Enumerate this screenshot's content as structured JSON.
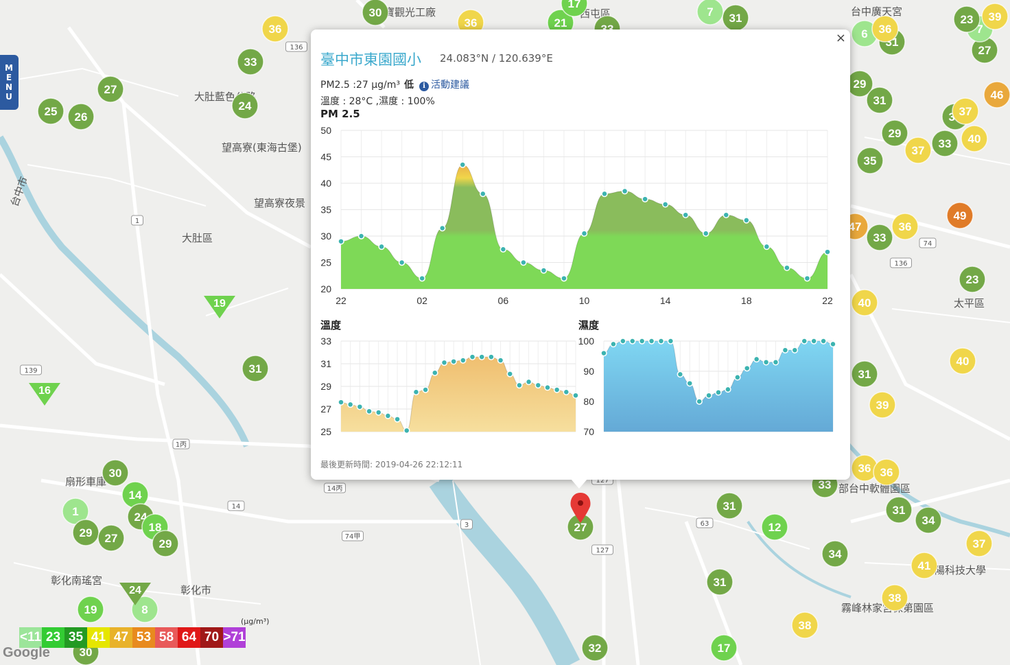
{
  "ui": {
    "menu": "MENU",
    "close": "×",
    "google": "Google"
  },
  "station": {
    "name": "臺中市東園國小",
    "coords": "24.083°N / 120.639°E",
    "pm_text": "PM2.5 :27 μg/m³",
    "level": "低",
    "advice": "活動建議",
    "weather": "溫度 : 28°C ,濕度 : 100%",
    "updated": "最後更新時間: 2019-04-26 22:12:11"
  },
  "chart_data": [
    {
      "type": "area",
      "title": "PM 2.5",
      "xlabels": [
        "22",
        "02",
        "06",
        "10",
        "14",
        "18",
        "22"
      ],
      "ylim": [
        20,
        50
      ],
      "yticks": [
        20,
        25,
        30,
        35,
        40,
        45,
        50
      ],
      "values": [
        29,
        30,
        28,
        25,
        22,
        31.5,
        43.5,
        38,
        27.5,
        25,
        23.5,
        22,
        30.5,
        38,
        38.5,
        37,
        36,
        34,
        30.5,
        34,
        33,
        28,
        24,
        22,
        27
      ],
      "grid": true
    },
    {
      "type": "area",
      "title": "溫度",
      "ylim": [
        25,
        33
      ],
      "yticks": [
        25,
        27,
        29,
        31,
        33
      ],
      "values": [
        27.6,
        27.4,
        27.2,
        26.8,
        26.7,
        26.4,
        26.1,
        25.1,
        28.5,
        28.7,
        30.2,
        31.1,
        31.2,
        31.3,
        31.6,
        31.6,
        31.6,
        31.3,
        30.1,
        29.1,
        29.4,
        29.1,
        28.9,
        28.7,
        28.5,
        28.2
      ],
      "grid": true
    },
    {
      "type": "area",
      "title": "濕度",
      "ylim": [
        70,
        100
      ],
      "yticks": [
        70,
        80,
        90,
        100
      ],
      "values": [
        96,
        99,
        100,
        100,
        100,
        100,
        100,
        100,
        89,
        86,
        80,
        82,
        83,
        84,
        88,
        91,
        94,
        93,
        93,
        97,
        97,
        100,
        100,
        100,
        99
      ],
      "grid": true
    }
  ],
  "map_labels": [
    "大肚區",
    "大肚藍色公路",
    "望高寮(東海古堡)",
    "望高寮夜景",
    "彰化市",
    "扇形車庫",
    "彰化南瑤宮",
    "太平區",
    "部台中軟體園區",
    "陽科技大學",
    "霧峰林家宮保第園區",
    "台中市",
    "寶觀光工廠",
    "西屯區",
    "台中廣天宮"
  ],
  "road_labels": [
    "136",
    "139",
    "127",
    "127",
    "74",
    "63",
    "14",
    "3",
    "1",
    "1丙",
    "14丙",
    "74甲",
    "136"
  ],
  "markers": [
    {
      "v": "30",
      "c": "#73a847"
    },
    {
      "v": "36",
      "c": "#f0d64a"
    },
    {
      "v": "33",
      "c": "#73a847"
    },
    {
      "v": "27",
      "c": "#73a847"
    },
    {
      "v": "25",
      "c": "#73a847"
    },
    {
      "v": "26",
      "c": "#73a847"
    },
    {
      "v": "24",
      "c": "#73a847"
    },
    {
      "v": "31",
      "c": "#73a847"
    },
    {
      "v": "30",
      "c": "#73a847"
    },
    {
      "v": "14",
      "c": "#6fd24e"
    },
    {
      "v": "1",
      "c": "#9ee58e"
    },
    {
      "v": "24",
      "c": "#73a847"
    },
    {
      "v": "18",
      "c": "#6fd24e"
    },
    {
      "v": "29",
      "c": "#73a847"
    },
    {
      "v": "27",
      "c": "#73a847"
    },
    {
      "v": "29",
      "c": "#73a847"
    },
    {
      "v": "19",
      "c": "#6fd24e"
    },
    {
      "v": "8",
      "c": "#9ee58e"
    },
    {
      "v": "30",
      "c": "#73a847"
    },
    {
      "v": "27",
      "c": "#73a847"
    },
    {
      "v": "31",
      "c": "#73a847"
    },
    {
      "v": "12",
      "c": "#6fd24e"
    },
    {
      "v": "31",
      "c": "#73a847"
    },
    {
      "v": "32",
      "c": "#73a847"
    },
    {
      "v": "17",
      "c": "#6fd24e"
    },
    {
      "v": "33",
      "c": "#73a847"
    },
    {
      "v": "31",
      "c": "#73a847"
    },
    {
      "v": "34",
      "c": "#73a847"
    },
    {
      "v": "34",
      "c": "#73a847"
    },
    {
      "v": "41",
      "c": "#f0d64a"
    },
    {
      "v": "37",
      "c": "#f0d64a"
    },
    {
      "v": "38",
      "c": "#f0d64a"
    },
    {
      "v": "38",
      "c": "#f0d64a"
    },
    {
      "v": "36",
      "c": "#f0d64a"
    },
    {
      "v": "36",
      "c": "#f0d64a"
    },
    {
      "v": "31",
      "c": "#73a847"
    },
    {
      "v": "39",
      "c": "#f0d64a"
    },
    {
      "v": "40",
      "c": "#f0d64a"
    },
    {
      "v": "40",
      "c": "#f0d64a"
    },
    {
      "v": "23",
      "c": "#73a847"
    },
    {
      "v": "33",
      "c": "#73a847"
    },
    {
      "v": "36",
      "c": "#f0d64a"
    },
    {
      "v": "47",
      "c": "#e9a83c"
    },
    {
      "v": "49",
      "c": "#e07b28"
    },
    {
      "v": "35",
      "c": "#73a847"
    },
    {
      "v": "37",
      "c": "#f0d64a"
    },
    {
      "v": "33",
      "c": "#73a847"
    },
    {
      "v": "40",
      "c": "#f0d64a"
    },
    {
      "v": "29",
      "c": "#73a847"
    },
    {
      "v": "31",
      "c": "#73a847"
    },
    {
      "v": "35",
      "c": "#73a847"
    },
    {
      "v": "29",
      "c": "#73a847"
    },
    {
      "v": "31",
      "c": "#73a847"
    },
    {
      "v": "27",
      "c": "#73a847"
    },
    {
      "v": "7",
      "c": "#9ee58e"
    },
    {
      "v": "23",
      "c": "#73a847"
    },
    {
      "v": "39",
      "c": "#f0d64a"
    },
    {
      "v": "46",
      "c": "#e9a83c"
    },
    {
      "v": "35",
      "c": "#73a847"
    },
    {
      "v": "37",
      "c": "#f0d64a"
    },
    {
      "v": "6",
      "c": "#9ee58e"
    },
    {
      "v": "31",
      "c": "#73a847"
    },
    {
      "v": "7",
      "c": "#9ee58e"
    },
    {
      "v": "21",
      "c": "#6fd24e"
    },
    {
      "v": "36",
      "c": "#f0d64a"
    },
    {
      "v": "17",
      "c": "#6fd24e"
    },
    {
      "v": "33",
      "c": "#73a847"
    },
    {
      "v": "36",
      "c": "#f0d64a"
    }
  ],
  "triangles": [
    {
      "v": "19",
      "c": "#6fd24e"
    },
    {
      "v": "16",
      "c": "#6fd24e"
    },
    {
      "v": "24",
      "c": "#73a847"
    }
  ],
  "legend": {
    "unit": "(μg/m³)",
    "items": [
      {
        "label": "<11",
        "c": "#9ce59a"
      },
      {
        "label": "23",
        "c": "#33cc33"
      },
      {
        "label": "35",
        "c": "#239a23"
      },
      {
        "label": "41",
        "c": "#e6e600"
      },
      {
        "label": "47",
        "c": "#e8b22a"
      },
      {
        "label": "53",
        "c": "#e88a1e"
      },
      {
        "label": "58",
        "c": "#e85a5a"
      },
      {
        "label": "64",
        "c": "#e01818"
      },
      {
        "label": "70",
        "c": "#a01818"
      },
      {
        "label": ">71",
        "c": "#b040d8"
      }
    ]
  }
}
